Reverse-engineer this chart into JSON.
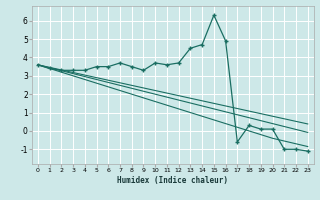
{
  "xlabel": "Humidex (Indice chaleur)",
  "background_color": "#cde8e8",
  "grid_color": "#ffffff",
  "line_color": "#1a6e62",
  "x_data": [
    0,
    1,
    2,
    3,
    4,
    5,
    6,
    7,
    8,
    9,
    10,
    11,
    12,
    13,
    14,
    15,
    16,
    17,
    18,
    19,
    20,
    21,
    22,
    23
  ],
  "y_main": [
    3.6,
    3.4,
    3.3,
    3.3,
    3.3,
    3.5,
    3.5,
    3.7,
    3.5,
    3.3,
    3.7,
    3.6,
    3.7,
    4.5,
    4.7,
    6.3,
    4.9,
    -0.6,
    0.3,
    0.1,
    0.1,
    -1.0,
    -1.0,
    -1.1
  ],
  "y_reg1": [
    3.6,
    3.4,
    3.2,
    3.0,
    2.8,
    2.6,
    2.4,
    2.2,
    2.0,
    1.8,
    1.6,
    1.4,
    1.2,
    1.0,
    0.8,
    0.6,
    0.4,
    0.2,
    0.0,
    -0.2,
    -0.4,
    -0.55,
    -0.7,
    -0.85
  ],
  "y_reg2": [
    3.6,
    3.44,
    3.28,
    3.12,
    2.96,
    2.8,
    2.64,
    2.48,
    2.32,
    2.16,
    2.0,
    1.84,
    1.68,
    1.52,
    1.36,
    1.2,
    1.04,
    0.88,
    0.72,
    0.56,
    0.4,
    0.24,
    0.08,
    -0.08
  ],
  "y_reg3": [
    3.6,
    3.46,
    3.32,
    3.18,
    3.04,
    2.9,
    2.76,
    2.62,
    2.48,
    2.34,
    2.2,
    2.06,
    1.92,
    1.78,
    1.64,
    1.5,
    1.36,
    1.22,
    1.08,
    0.94,
    0.8,
    0.66,
    0.52,
    0.38
  ],
  "ylim": [
    -1.8,
    6.8
  ],
  "xlim": [
    -0.5,
    23.5
  ],
  "yticks": [
    -1,
    0,
    1,
    2,
    3,
    4,
    5,
    6
  ],
  "xticks": [
    0,
    1,
    2,
    3,
    4,
    5,
    6,
    7,
    8,
    9,
    10,
    11,
    12,
    13,
    14,
    15,
    16,
    17,
    18,
    19,
    20,
    21,
    22,
    23
  ]
}
